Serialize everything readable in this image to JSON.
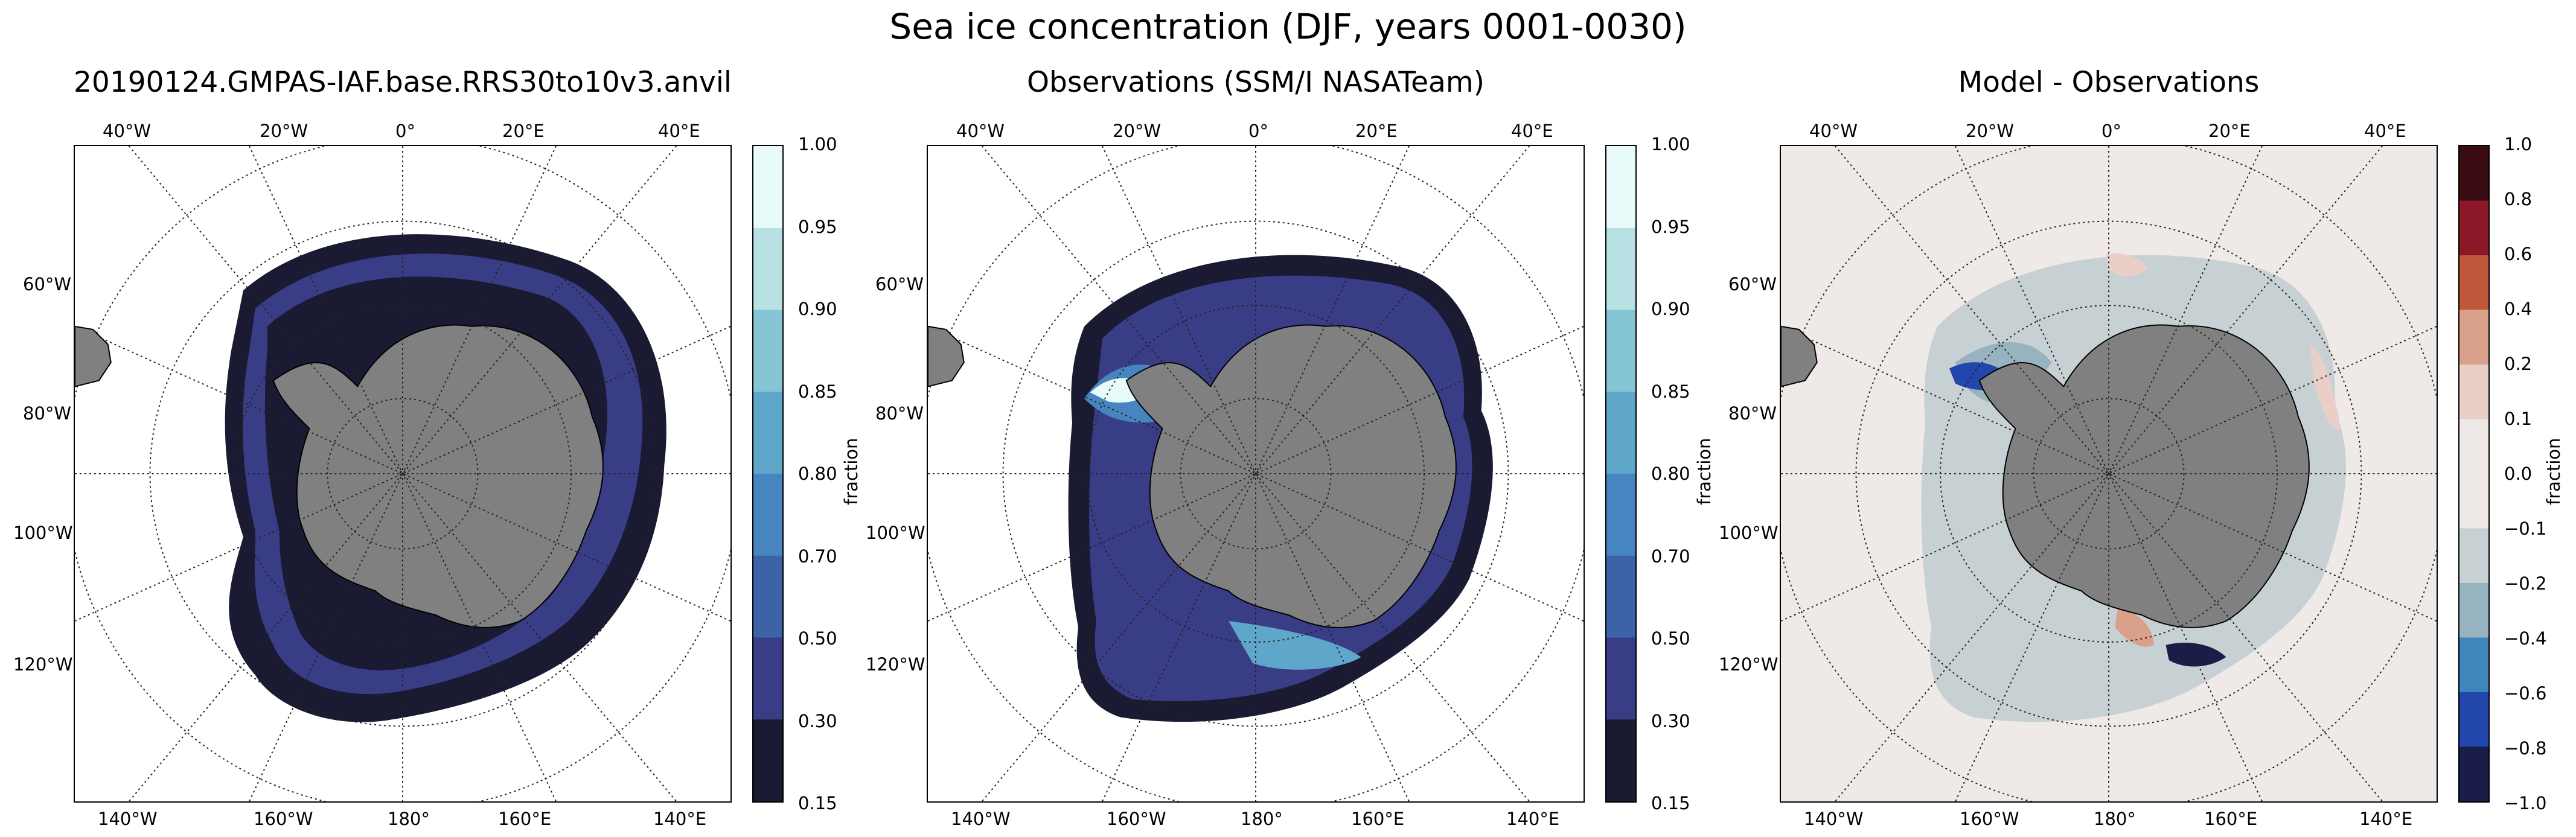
{
  "figure": {
    "title": "Sea ice concentration (DJF, years 0001-0030)"
  },
  "panels": [
    {
      "title": "20190124.GMPAS-IAF.base.RRS30to10v3.anvil",
      "colorbar": {
        "ticks": [
          "1.00",
          "0.95",
          "0.90",
          "0.85",
          "0.80",
          "0.70",
          "0.50",
          "0.30",
          "0.15"
        ],
        "units": "fraction",
        "colors": [
          "#e8fafa",
          "#b7e1e3",
          "#86c5d4",
          "#5fa7ca",
          "#4685bf",
          "#3c63a8",
          "#383d86",
          "#1a1a32"
        ]
      }
    },
    {
      "title": "Observations (SSM/I NASATeam)",
      "colorbar": {
        "ticks": [
          "1.00",
          "0.95",
          "0.90",
          "0.85",
          "0.80",
          "0.70",
          "0.50",
          "0.30",
          "0.15"
        ],
        "units": "fraction",
        "colors": [
          "#e8fafa",
          "#b7e1e3",
          "#86c5d4",
          "#5fa7ca",
          "#4685bf",
          "#3c63a8",
          "#383d86",
          "#1a1a32"
        ]
      }
    },
    {
      "title": "Model - Observations",
      "colorbar": {
        "ticks": [
          "1.0",
          "0.8",
          "0.6",
          "0.4",
          "0.2",
          "0.1",
          "0.0",
          "−0.1",
          "−0.2",
          "−0.4",
          "−0.6",
          "−0.8",
          "−1.0"
        ],
        "units": "fraction",
        "colors": [
          "#3a0c14",
          "#8c1827",
          "#c0573a",
          "#d9a08c",
          "#e9cfc8",
          "#efe9e7",
          "#efe9e7",
          "#c7d0d3",
          "#96b3bf",
          "#3e86bb",
          "#2346ad",
          "#1a1d47"
        ]
      }
    }
  ],
  "map_labels": {
    "top": [
      "40°W",
      "20°W",
      "0°",
      "20°E",
      "40°E"
    ],
    "bottom": [
      "140°W",
      "160°W",
      "180°",
      "160°E",
      "140°E"
    ],
    "left": [
      "60°W",
      "80°W",
      "100°W",
      "120°W"
    ]
  },
  "colors": {
    "land": "#808080",
    "ocean": "#ffffff",
    "sea_ice_edge": "#1a1a32"
  }
}
